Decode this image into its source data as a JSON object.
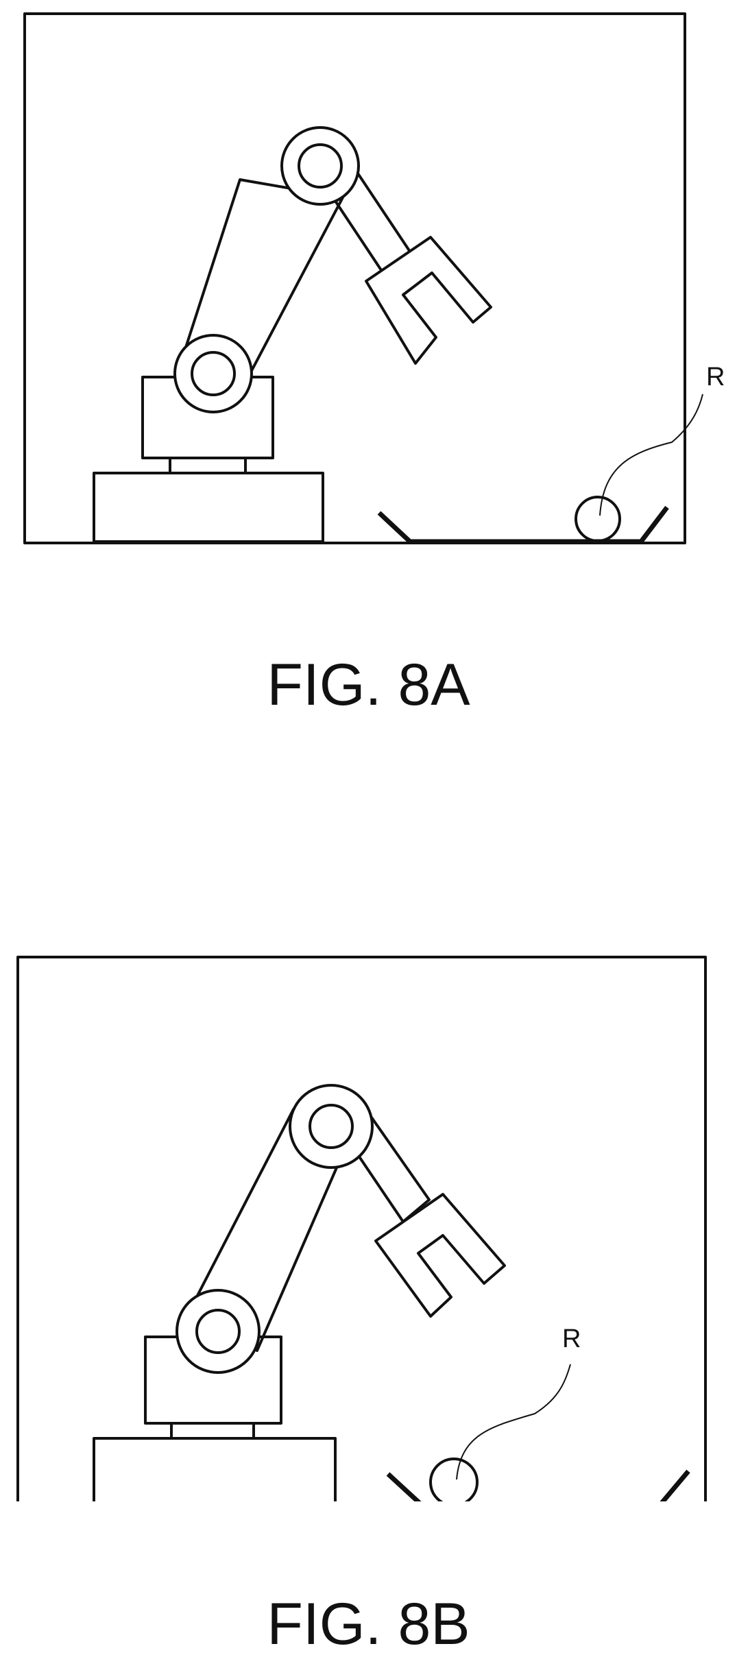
{
  "figures": [
    {
      "caption": "FIG. 8A",
      "object_label": "R"
    },
    {
      "caption": "FIG. 8B",
      "object_label": "R"
    }
  ]
}
